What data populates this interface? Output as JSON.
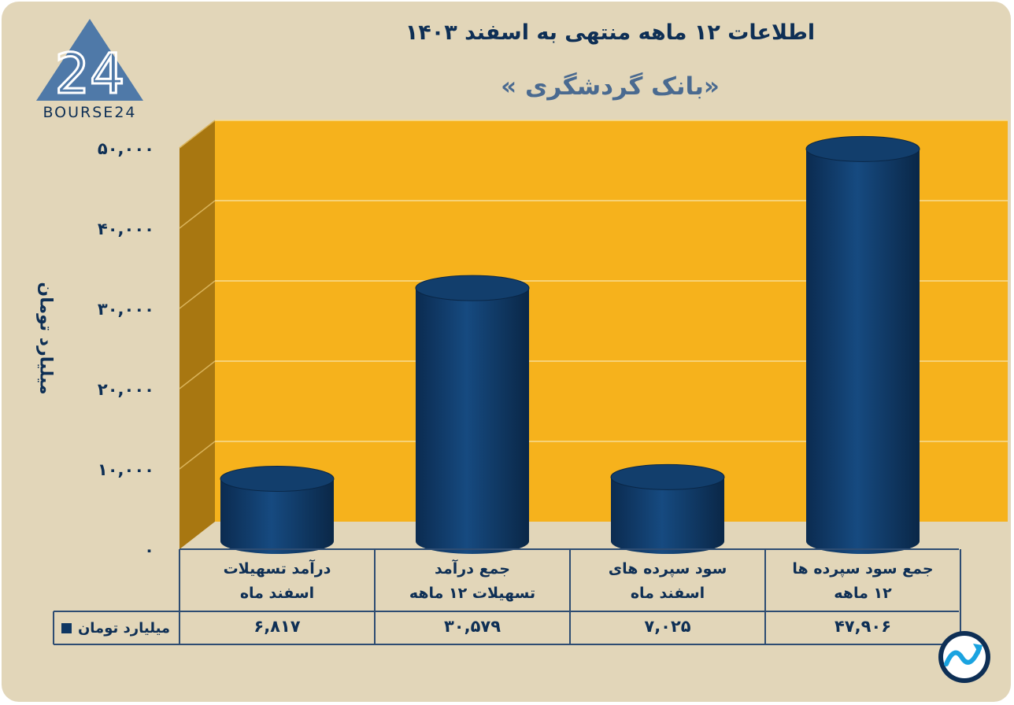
{
  "title": "اطلاعات ۱۲ ماهه منتهی به اسفند ۱۴۰۳",
  "subtitle": "«بانک گردشگری »",
  "logo": {
    "text": "BOURSE24",
    "mark": "24",
    "icon": "triangle-logo-icon"
  },
  "badge_icon": "trend-arrow-icon",
  "colors": {
    "background": "#e2d6b9",
    "plot_area": "#f6b21c",
    "side_wall": "#a87711",
    "bar": "#0f3763",
    "text": "#0e2f55"
  },
  "chart_data": {
    "type": "bar",
    "ylabel": "میلیارد تومان",
    "ylim": [
      0,
      50000
    ],
    "yticks": [
      0,
      10000,
      20000,
      30000,
      40000,
      50000
    ],
    "ytick_labels": [
      "۰",
      "۱۰,۰۰۰",
      "۲۰,۰۰۰",
      "۳۰,۰۰۰",
      "۴۰,۰۰۰",
      "۵۰,۰۰۰"
    ],
    "grid": true,
    "legend": "bottom-left",
    "categories": [
      [
        "درآمد تسهیلات",
        "اسفند ماه"
      ],
      [
        "جمع درآمد",
        "تسهیلات ۱۲ ماهه"
      ],
      [
        "سود سپرده های",
        "اسفند ماه"
      ],
      [
        "جمع سود سپرده ها",
        "۱۲ ماهه"
      ]
    ],
    "series": [
      {
        "name": "میلیارد تومان",
        "values": [
          6817,
          30579,
          7025,
          47906
        ],
        "value_labels": [
          "۶,۸۱۷",
          "۳۰,۵۷۹",
          "۷,۰۲۵",
          "۴۷,۹۰۶"
        ]
      }
    ]
  }
}
